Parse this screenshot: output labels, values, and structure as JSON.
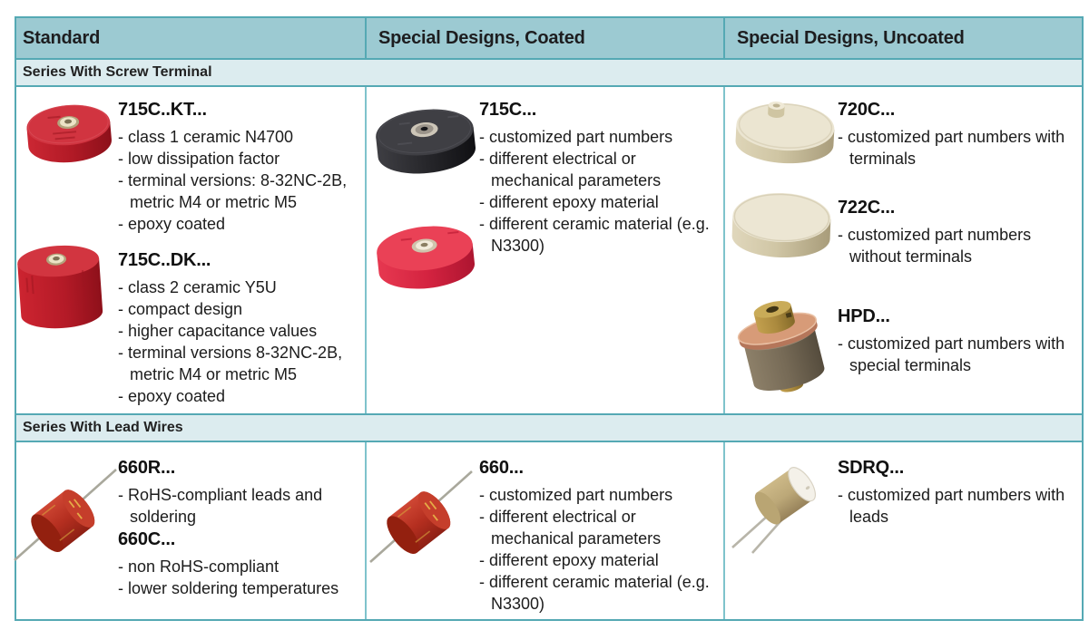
{
  "table": {
    "header": [
      "Standard",
      "Special Designs, Coated",
      "Special Designs, Uncoated"
    ],
    "sections": [
      {
        "title": "Series With Screw Terminal",
        "cells": [
          {
            "images": [
              "red-capacitor-screw-terminal",
              "red-capacitor-compact"
            ],
            "products": [
              {
                "code": "715C..KT...",
                "bullets": [
                  "class 1 ceramic N4700",
                  "low dissipation factor",
                  "terminal versions: 8-32NC-2B, metric M4 or metric M5",
                  "epoxy coated"
                ]
              },
              {
                "code": "715C..DK...",
                "bullets": [
                  "class 2 ceramic Y5U",
                  "compact design",
                  "higher capacitance values",
                  "terminal versions 8-32NC-2B, metric M4 or metric M5",
                  "epoxy coated"
                ]
              }
            ]
          },
          {
            "images": [
              "black-capacitor",
              "crimson-capacitor"
            ],
            "products": [
              {
                "code": "715C...",
                "bullets": [
                  "customized part numbers",
                  "different electrical or mechanical parameters",
                  "different epoxy material",
                  "different ceramic material (e.g. N3300)"
                ]
              }
            ]
          },
          {
            "images": [
              "cream-capacitor-with-terminal",
              "cream-capacitor-plain",
              "hpd-capacitor"
            ],
            "products": [
              {
                "code": "720C...",
                "bullets": [
                  "customized part numbers with terminals"
                ]
              },
              {
                "code": "722C...",
                "bullets": [
                  "customized part numbers without terminals"
                ]
              },
              {
                "code": "HPD...",
                "bullets": [
                  "customized part numbers with special terminals"
                ]
              }
            ]
          }
        ]
      },
      {
        "title": "Series With Lead Wires",
        "cells": [
          {
            "images": [
              "red-disc-capacitor-axial-lead"
            ],
            "products": [
              {
                "code": "660R...",
                "bullets": [
                  "RoHS-compliant leads and soldering"
                ]
              },
              {
                "code": "660C...",
                "bullets": [
                  "non RoHS-compliant",
                  "lower soldering temperatures"
                ]
              }
            ]
          },
          {
            "images": [
              "red-disc-capacitor-axial-lead-2"
            ],
            "products": [
              {
                "code": "660...",
                "bullets": [
                  "customized part numbers",
                  "different electrical or mechanical parameters",
                  "different epoxy material",
                  "different ceramic material (e.g. N3300)"
                ]
              }
            ]
          },
          {
            "images": [
              "tan-capacitor-radial-leads"
            ],
            "products": [
              {
                "code": "SDRQ...",
                "bullets": [
                  "customized part numbers with leads"
                ]
              }
            ]
          }
        ]
      }
    ]
  },
  "colors": {
    "header_bg": "#9ccad2",
    "band_bg": "#dcecef",
    "table_border": "#55a9b4",
    "divider": "#7fc3cc",
    "text": "#1c1c1c",
    "product_red": "#b51b27",
    "product_crimson": "#d42340",
    "product_black": "#26262a",
    "product_cream": "#d0c6a5",
    "product_brass": "#ab8a3e",
    "product_copper": "#d79b78"
  }
}
